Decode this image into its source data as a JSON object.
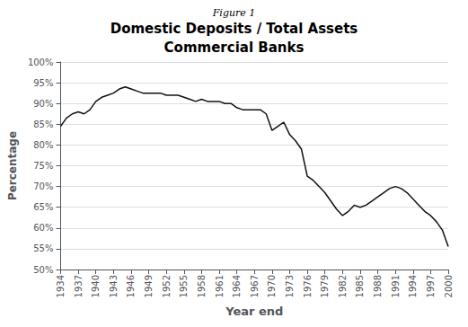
{
  "chart_data": {
    "type": "line",
    "title": "Domestic Deposits / Total Assets",
    "subtitle": "Commercial Banks",
    "annotations": [
      {
        "text": "Figure 1"
      }
    ],
    "x_label": "Year end",
    "y_label": "Percentage",
    "x": [
      1934,
      1935,
      1936,
      1937,
      1938,
      1939,
      1940,
      1941,
      1942,
      1943,
      1944,
      1945,
      1946,
      1947,
      1948,
      1949,
      1950,
      1951,
      1952,
      1953,
      1954,
      1955,
      1956,
      1957,
      1958,
      1959,
      1960,
      1961,
      1962,
      1963,
      1964,
      1965,
      1966,
      1967,
      1968,
      1969,
      1970,
      1971,
      1972,
      1973,
      1974,
      1975,
      1976,
      1977,
      1978,
      1979,
      1980,
      1981,
      1982,
      1983,
      1984,
      1985,
      1986,
      1987,
      1988,
      1989,
      1990,
      1991,
      1992,
      1993,
      1994,
      1995,
      1996,
      1997,
      1998,
      1999,
      2000
    ],
    "values": [
      84.5,
      86.5,
      87.5,
      88.0,
      87.5,
      88.5,
      90.5,
      91.5,
      92.0,
      92.5,
      93.5,
      94.0,
      93.5,
      93.0,
      92.5,
      92.5,
      92.5,
      92.5,
      92.0,
      92.0,
      92.0,
      91.5,
      91.0,
      90.5,
      91.0,
      90.5,
      90.5,
      90.5,
      90.0,
      90.0,
      89.0,
      88.5,
      88.5,
      88.5,
      88.5,
      87.5,
      83.5,
      84.5,
      85.5,
      82.5,
      81.0,
      79.0,
      72.5,
      71.5,
      70.0,
      68.5,
      66.5,
      64.5,
      63.0,
      64.0,
      65.5,
      65.0,
      65.5,
      66.5,
      67.5,
      68.5,
      69.5,
      70.0,
      69.5,
      68.5,
      67.0,
      65.5,
      64.0,
      63.0,
      61.5,
      59.5,
      55.5
    ],
    "color": "#111111",
    "xlim": [
      1934,
      2000
    ],
    "xticks": [
      1934,
      1937,
      1940,
      1943,
      1946,
      1949,
      1952,
      1955,
      1958,
      1961,
      1964,
      1967,
      1970,
      1973,
      1976,
      1979,
      1982,
      1985,
      1988,
      1991,
      1994,
      1997,
      2000
    ],
    "ylim": [
      50,
      100
    ],
    "yticks": [
      {
        "value": 50,
        "label": "50%"
      },
      {
        "value": 55,
        "label": "55%"
      },
      {
        "value": 60,
        "label": "60%"
      },
      {
        "value": 65,
        "label": "65%"
      },
      {
        "value": 70,
        "label": "70%"
      },
      {
        "value": 75,
        "label": "75%"
      },
      {
        "value": 80,
        "label": "80%"
      },
      {
        "value": 85,
        "label": "85%"
      },
      {
        "value": 90,
        "label": "90%"
      },
      {
        "value": 95,
        "label": "95%"
      },
      {
        "value": 100,
        "label": "100%"
      }
    ],
    "grid": true
  }
}
